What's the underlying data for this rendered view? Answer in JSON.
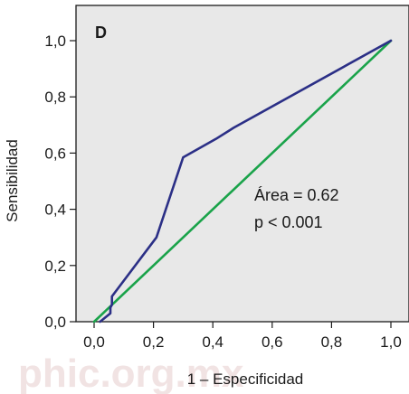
{
  "chart_data": {
    "type": "line",
    "panel_label": "D",
    "xlabel": "1 – Especificidad",
    "ylabel": "Sensibilidad",
    "xlim": [
      0,
      1
    ],
    "ylim": [
      0,
      1
    ],
    "x_ticks": [
      "0,0",
      "0,2",
      "0,4",
      "0,6",
      "0,8",
      "1,0"
    ],
    "y_ticks": [
      "0,0",
      "0,2",
      "0,4",
      "0,6",
      "0,8",
      "1,0"
    ],
    "grid": false,
    "series": [
      {
        "color": "#2b2f86",
        "x": [
          0.02,
          0.055,
          0.055,
          0.06,
          0.06,
          0.21,
          0.3,
          0.41,
          0.47,
          1.0
        ],
        "y": [
          0.0,
          0.03,
          0.05,
          0.06,
          0.09,
          0.3,
          0.585,
          0.65,
          0.69,
          1.0
        ]
      },
      {
        "color": "#1aa34a",
        "x": [
          0.0,
          1.0
        ],
        "y": [
          0.0,
          1.0
        ]
      }
    ],
    "annotations": [
      "Área = 0.62",
      "p < 0.001"
    ],
    "background_color": "#e8e8e8"
  },
  "watermark": "phic.org.mx"
}
